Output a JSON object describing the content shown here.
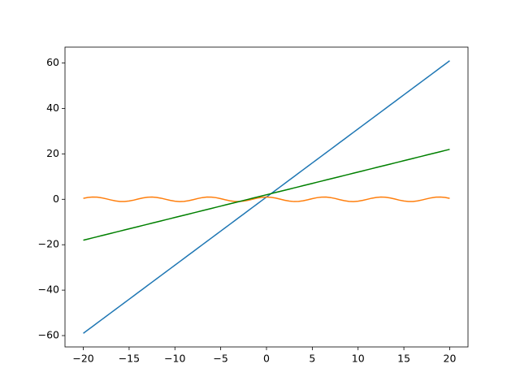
{
  "chart_data": {
    "type": "line",
    "x": [
      -20,
      -19.5,
      -19,
      -18.5,
      -18,
      -17.5,
      -17,
      -16.5,
      -16,
      -15.5,
      -15,
      -14.5,
      -14,
      -13.5,
      -13,
      -12.5,
      -12,
      -11.5,
      -11,
      -10.5,
      -10,
      -9.5,
      -9,
      -8.5,
      -8,
      -7.5,
      -7,
      -6.5,
      -6,
      -5.5,
      -5,
      -4.5,
      -4,
      -3.5,
      -3,
      -2.5,
      -2,
      -1.5,
      -1,
      -0.5,
      0,
      0.5,
      1,
      1.5,
      2,
      2.5,
      3,
      3.5,
      4,
      4.5,
      5,
      5.5,
      6,
      6.5,
      7,
      7.5,
      8,
      8.5,
      9,
      9.5,
      10,
      10.5,
      11,
      11.5,
      12,
      12.5,
      13,
      13.5,
      14,
      14.5,
      15,
      15.5,
      16,
      16.5,
      17,
      17.5,
      18,
      18.5,
      19,
      19.5,
      20
    ],
    "series": [
      {
        "color": "#1f77b4",
        "values": [
          -59,
          -57.5,
          -56,
          -54.5,
          -53,
          -51.5,
          -50,
          -48.5,
          -47,
          -45.5,
          -44,
          -42.5,
          -41,
          -39.5,
          -38,
          -36.5,
          -35,
          -33.5,
          -32,
          -30.5,
          -29,
          -27.5,
          -26,
          -24.5,
          -23,
          -21.5,
          -20,
          -18.5,
          -17,
          -15.5,
          -14,
          -12.5,
          -11,
          -9.5,
          -8,
          -6.5,
          -5,
          -3.5,
          -2,
          -0.5,
          1,
          2.5,
          4,
          5.5,
          7,
          8.5,
          10,
          11.5,
          13,
          14.5,
          16,
          17.5,
          19,
          20.5,
          22,
          23.5,
          25,
          26.5,
          28,
          29.5,
          31,
          32.5,
          34,
          35.5,
          37,
          38.5,
          40,
          41.5,
          43,
          44.5,
          46,
          47.5,
          49,
          50.5,
          52,
          53.5,
          55,
          56.5,
          58,
          59.5,
          61
        ]
      },
      {
        "color": "#ff7f0e",
        "values": [
          0.41,
          0.81,
          0.99,
          0.94,
          0.66,
          0.22,
          -0.28,
          -0.71,
          -0.96,
          -0.98,
          -0.76,
          -0.36,
          0.14,
          0.59,
          0.91,
          1,
          0.84,
          0.48,
          0,
          -0.48,
          -0.84,
          -1,
          -0.91,
          -0.6,
          -0.15,
          0.35,
          0.75,
          0.98,
          0.96,
          0.71,
          0.28,
          -0.21,
          -0.65,
          -0.94,
          -0.99,
          -0.8,
          -0.42,
          0.07,
          0.54,
          0.88,
          1,
          0.88,
          0.54,
          0.07,
          -0.42,
          -0.8,
          -0.99,
          -0.94,
          -0.65,
          -0.21,
          0.28,
          0.71,
          0.96,
          0.98,
          0.75,
          0.35,
          -0.15,
          -0.6,
          -0.91,
          -1,
          -0.84,
          -0.48,
          0,
          0.48,
          0.84,
          1,
          0.91,
          0.59,
          0.14,
          -0.36,
          -0.76,
          -0.98,
          -0.96,
          -0.71,
          -0.28,
          0.22,
          0.66,
          0.94,
          0.99,
          0.81,
          0.41
        ]
      },
      {
        "color": "#008000",
        "values": [
          -18,
          -17.5,
          -17,
          -16.5,
          -16,
          -15.5,
          -15,
          -14.5,
          -14,
          -13.5,
          -13,
          -12.5,
          -12,
          -11.5,
          -11,
          -10.5,
          -10,
          -9.5,
          -9,
          -8.5,
          -8,
          -7.5,
          -7,
          -6.5,
          -6,
          -5.5,
          -5,
          -4.5,
          -4,
          -3.5,
          -3,
          -2.5,
          -2,
          -1.5,
          -1,
          -0.5,
          0,
          0.5,
          1,
          1.5,
          2,
          2.5,
          3,
          3.5,
          4,
          4.5,
          5,
          5.5,
          6,
          6.5,
          7,
          7.5,
          8,
          8.5,
          9,
          9.5,
          10,
          10.5,
          11,
          11.5,
          12,
          12.5,
          13,
          13.5,
          14,
          14.5,
          15,
          15.5,
          16,
          16.5,
          17,
          17.5,
          18,
          18.5,
          19,
          19.5,
          20,
          20.5,
          21,
          21.5,
          22
        ]
      }
    ],
    "xlim": [
      -22,
      22
    ],
    "xticks": [
      {
        "value": -20,
        "label": "−20"
      },
      {
        "value": -15,
        "label": "−15"
      },
      {
        "value": -10,
        "label": "−10"
      },
      {
        "value": -5,
        "label": "−5"
      },
      0,
      5,
      10,
      15,
      20
    ],
    "ylim": [
      -65,
      67
    ],
    "yticks": [
      {
        "value": -60,
        "label": "−60"
      },
      {
        "value": -40,
        "label": "−40"
      },
      {
        "value": -20,
        "label": "−20"
      },
      0,
      20,
      40,
      60
    ]
  }
}
